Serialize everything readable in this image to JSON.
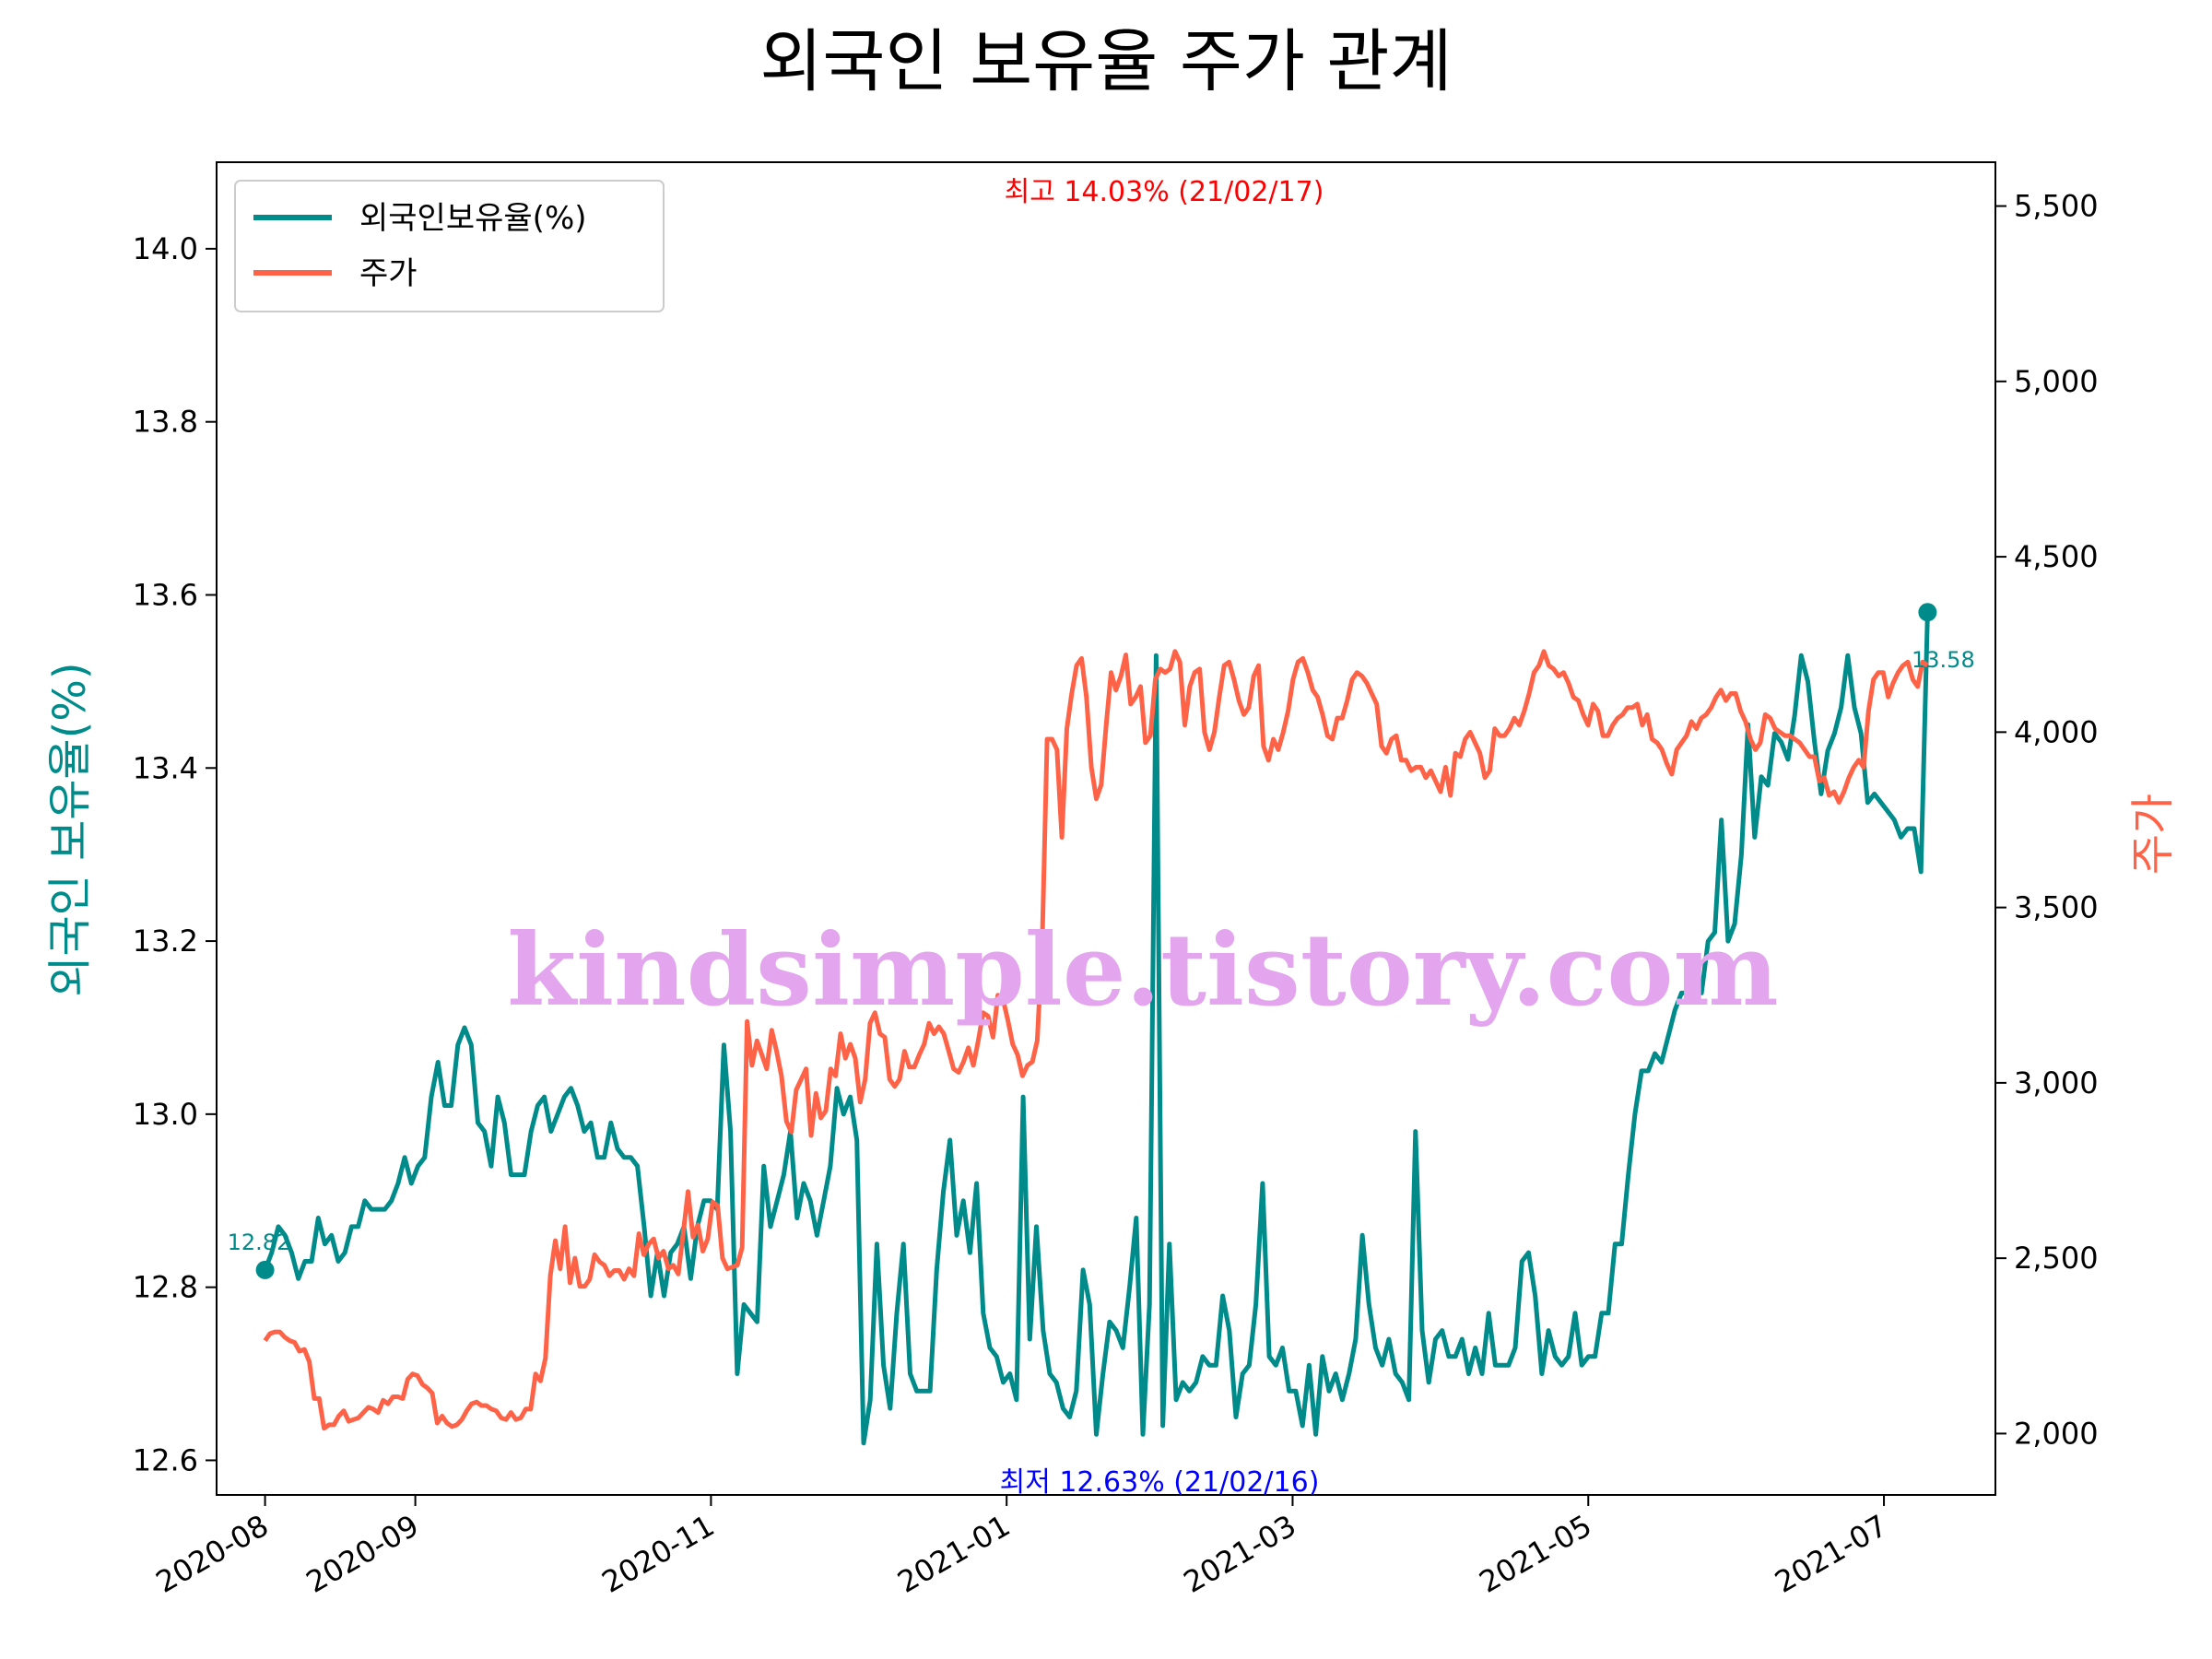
{
  "chart_data": {
    "type": "line",
    "title": "외국인 보유율 주가 관계",
    "ylabel_left": "외국인 보유율(%)",
    "ylabel_right": "주가",
    "watermark": "kindsimple.tistory.com",
    "x_start": "2020-08-01",
    "x_end": "2021-07-10",
    "x_range": [
      "2020-07-22",
      "2021-07-24"
    ],
    "ylim_left": [
      12.56,
      14.1
    ],
    "ylim_right": [
      1825,
      5625
    ],
    "x_ticks": [
      {
        "date": "2020-08-01",
        "label": "2020-08"
      },
      {
        "date": "2020-09-01",
        "label": "2020-09"
      },
      {
        "date": "2020-11-01",
        "label": "2020-11"
      },
      {
        "date": "2021-01-01",
        "label": "2021-01"
      },
      {
        "date": "2021-03-01",
        "label": "2021-03"
      },
      {
        "date": "2021-05-01",
        "label": "2021-05"
      },
      {
        "date": "2021-07-01",
        "label": "2021-07"
      }
    ],
    "y_ticks_left": [
      "12.6",
      "12.8",
      "13.0",
      "13.2",
      "13.4",
      "13.6",
      "13.8",
      "14.0"
    ],
    "y_ticks_right": [
      "2,000",
      "2,500",
      "3,000",
      "3,500",
      "4,000",
      "4,500",
      "5,000",
      "5,500"
    ],
    "grid": false,
    "legend_position": "top-left",
    "series": [
      {
        "name": "외국인보유율(%)",
        "axis": "left",
        "color": "#008b8b",
        "values": [
          12.82,
          12.84,
          12.87,
          12.86,
          12.84,
          12.81,
          12.83,
          12.83,
          12.88,
          12.85,
          12.86,
          12.83,
          12.84,
          12.87,
          12.87,
          12.9,
          12.89,
          12.89,
          12.89,
          12.9,
          12.92,
          12.95,
          12.92,
          12.94,
          12.95,
          13.02,
          13.06,
          13.01,
          13.01,
          13.08,
          13.1,
          13.08,
          12.99,
          12.98,
          12.94,
          13.02,
          12.99,
          12.93,
          12.93,
          12.93,
          12.98,
          13.01,
          13.02,
          12.98,
          13.0,
          13.02,
          13.03,
          13.01,
          12.98,
          12.99,
          12.95,
          12.95,
          12.99,
          12.96,
          12.95,
          12.95,
          12.94,
          12.87,
          12.79,
          12.84,
          12.79,
          12.84,
          12.85,
          12.87,
          12.81,
          12.87,
          12.9,
          12.9,
          12.89,
          13.08,
          12.98,
          12.7,
          12.78,
          12.77,
          12.76,
          12.94,
          12.87,
          12.9,
          12.93,
          12.98,
          12.88,
          12.92,
          12.9,
          12.86,
          12.9,
          12.94,
          13.03,
          13.0,
          13.02,
          12.97,
          12.62,
          12.67,
          12.85,
          12.71,
          12.66,
          12.77,
          12.85,
          12.7,
          12.68,
          12.68,
          12.68,
          12.82,
          12.91,
          12.97,
          12.86,
          12.9,
          12.84,
          12.92,
          12.77,
          12.73,
          12.72,
          12.69,
          12.7,
          12.67,
          13.02,
          12.74,
          12.87,
          12.75,
          12.7,
          12.69,
          12.66,
          12.65,
          12.68,
          12.82,
          12.78,
          12.63,
          12.7,
          12.76,
          12.75,
          12.73,
          12.8,
          12.88,
          12.63,
          12.78,
          13.53,
          12.64,
          12.85,
          12.67,
          12.69,
          12.68,
          12.69,
          12.72,
          12.71,
          12.71,
          12.79,
          12.75,
          12.65,
          12.7,
          12.71,
          12.78,
          12.92,
          12.72,
          12.71,
          12.73,
          12.68,
          12.68,
          12.64,
          12.71,
          12.63,
          12.72,
          12.68,
          12.7,
          12.67,
          12.7,
          12.74,
          12.86,
          12.78,
          12.73,
          12.71,
          12.74,
          12.7,
          12.69,
          12.67,
          12.98,
          12.75,
          12.69,
          12.74,
          12.75,
          12.72,
          12.72,
          12.74,
          12.7,
          12.73,
          12.7,
          12.77,
          12.71,
          12.71,
          12.71,
          12.73,
          12.83,
          12.84,
          12.79,
          12.7,
          12.75,
          12.72,
          12.71,
          12.72,
          12.77,
          12.71,
          12.72,
          12.72,
          12.77,
          12.77,
          12.85,
          12.85,
          12.93,
          13.0,
          13.05,
          13.05,
          13.07,
          13.06,
          13.09,
          13.12,
          13.14,
          13.14,
          13.14,
          13.14,
          13.2,
          13.21,
          13.34,
          13.2,
          13.22,
          13.3,
          13.45,
          13.32,
          13.39,
          13.38,
          13.44,
          13.43,
          13.41,
          13.46,
          13.53,
          13.5,
          13.43,
          13.37,
          13.42,
          13.44,
          13.47,
          13.53,
          13.47,
          13.44,
          13.36,
          13.37,
          13.36,
          13.35,
          13.34,
          13.32,
          13.33,
          13.33,
          13.28,
          13.58
        ]
      },
      {
        "name": "주가",
        "axis": "right",
        "color": "#ff6347",
        "values": [
          2265,
          2285,
          2290,
          2290,
          2275,
          2265,
          2260,
          2235,
          2240,
          2205,
          2100,
          2100,
          2015,
          2025,
          2025,
          2050,
          2065,
          2035,
          2040,
          2045,
          2060,
          2075,
          2070,
          2060,
          2095,
          2085,
          2105,
          2105,
          2100,
          2155,
          2170,
          2165,
          2140,
          2130,
          2115,
          2030,
          2050,
          2030,
          2020,
          2025,
          2040,
          2065,
          2085,
          2090,
          2080,
          2080,
          2070,
          2065,
          2045,
          2040,
          2060,
          2040,
          2045,
          2070,
          2070,
          2170,
          2150,
          2215,
          2450,
          2550,
          2470,
          2590,
          2430,
          2500,
          2420,
          2420,
          2440,
          2510,
          2490,
          2480,
          2450,
          2465,
          2465,
          2440,
          2470,
          2450,
          2570,
          2510,
          2540,
          2555,
          2500,
          2520,
          2470,
          2480,
          2455,
          2570,
          2690,
          2560,
          2595,
          2520,
          2555,
          2660,
          2650,
          2500,
          2470,
          2475,
          2480,
          2530,
          3175,
          3050,
          3120,
          3080,
          3040,
          3150,
          3090,
          3020,
          2890,
          2860,
          2980,
          3010,
          3040,
          2850,
          2970,
          2900,
          2920,
          3040,
          3020,
          3140,
          3070,
          3110,
          3070,
          2945,
          3010,
          3170,
          3200,
          3140,
          3130,
          3010,
          2990,
          3010,
          3090,
          3045,
          3045,
          3080,
          3110,
          3170,
          3140,
          3160,
          3140,
          3090,
          3040,
          3030,
          3060,
          3100,
          3050,
          3120,
          3200,
          3190,
          3130,
          3250,
          3240,
          3180,
          3110,
          3080,
          3020,
          3050,
          3060,
          3120,
          3400,
          3980,
          3980,
          3950,
          3700,
          4010,
          4110,
          4190,
          4210,
          4100,
          3900,
          3810,
          3850,
          4020,
          4170,
          4120,
          4160,
          4220,
          4080,
          4100,
          4130,
          3970,
          3990,
          4150,
          4180,
          4170,
          4180,
          4230,
          4200,
          4020,
          4130,
          4170,
          4180,
          4000,
          3950,
          4000,
          4100,
          4190,
          4200,
          4150,
          4090,
          4050,
          4070,
          4160,
          4190,
          3960,
          3920,
          3980,
          3950,
          4000,
          4060,
          4150,
          4200,
          4210,
          4170,
          4120,
          4100,
          4050,
          3990,
          3980,
          4040,
          4040,
          4090,
          4150,
          4170,
          4160,
          4140,
          4110,
          4080,
          3960,
          3940,
          3980,
          3990,
          3920,
          3920,
          3890,
          3900,
          3900,
          3870,
          3890,
          3860,
          3830,
          3900,
          3820,
          3940,
          3930,
          3980,
          4000,
          3970,
          3940,
          3870,
          3890,
          4010,
          3990,
          3990,
          4010,
          4040,
          4020,
          4060,
          4110,
          4170,
          4190,
          4230,
          4190,
          4180,
          4160,
          4170,
          4140,
          4100,
          4090,
          4050,
          4020,
          4080,
          4060,
          3990,
          3990,
          4020,
          4040,
          4050,
          4070,
          4070,
          4080,
          4020,
          4050,
          3980,
          3970,
          3950,
          3910,
          3880,
          3950,
          3970,
          3990,
          4030,
          4010,
          4040,
          4050,
          4070,
          4100,
          4120,
          4090,
          4110,
          4110,
          4060,
          4030,
          3980,
          3950,
          3970,
          4050,
          4040,
          4010,
          4000,
          3990,
          3990,
          3980,
          3970,
          3950,
          3930,
          3930,
          3860,
          3870,
          3820,
          3830,
          3800,
          3830,
          3870,
          3900,
          3920,
          3900,
          4060,
          4150,
          4170,
          4170,
          4100,
          4140,
          4170,
          4190,
          4200,
          4150,
          4130,
          4200,
          4190
        ]
      }
    ],
    "annotations": {
      "max_label": "최고 14.03% (21/02/17)",
      "min_label": "최저 12.63% (21/02/16)",
      "start_label": "12.82",
      "end_label": "13.58",
      "max_color": "#ff0000",
      "min_color": "#0000ff"
    }
  }
}
